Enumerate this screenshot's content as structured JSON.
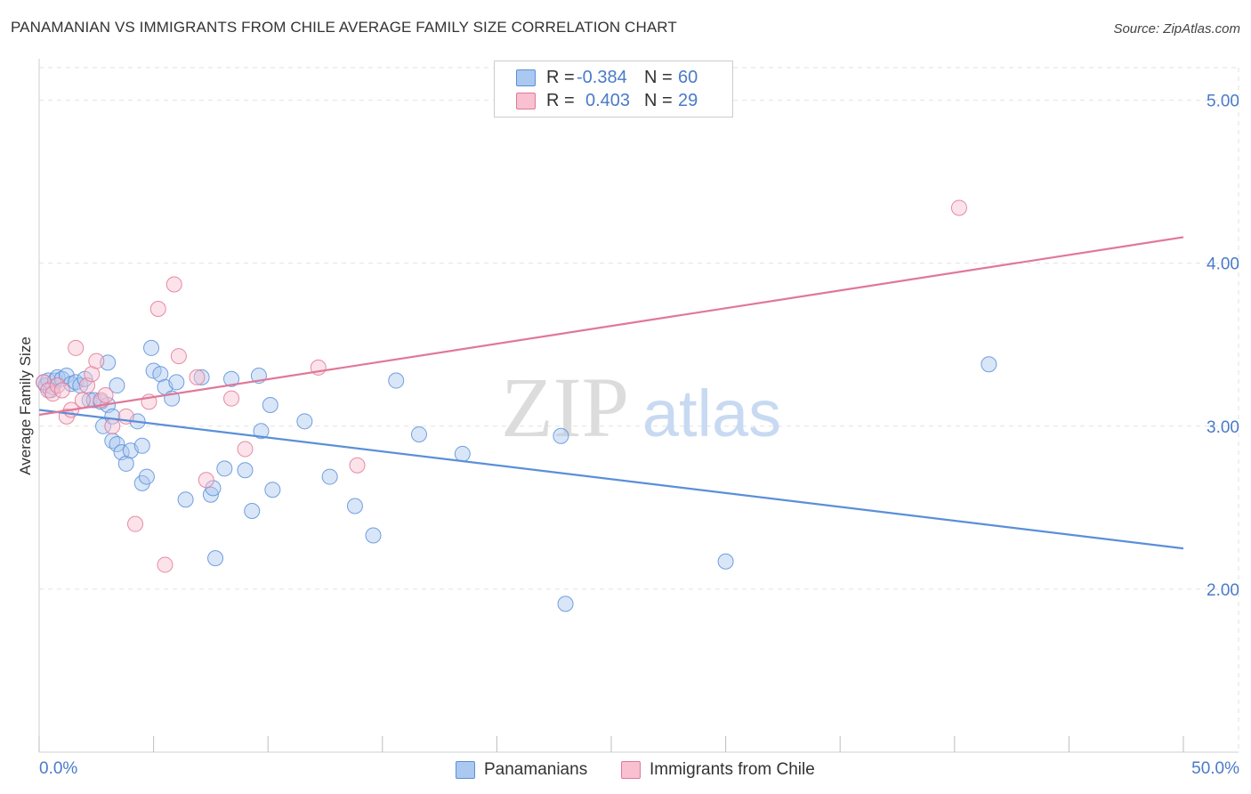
{
  "title": "PANAMANIAN VS IMMIGRANTS FROM CHILE AVERAGE FAMILY SIZE CORRELATION CHART",
  "source": "Source: ZipAtlas.com",
  "watermark": {
    "zip": "ZIP",
    "atlas": "atlas"
  },
  "legend": {
    "rows": [
      {
        "r_label": "R =",
        "r_value": "-0.384",
        "n_label": "N =",
        "n_value": "60",
        "color": "#aac8f0",
        "border": "#5b8fd8"
      },
      {
        "r_label": "R =",
        "r_value": "0.403",
        "n_label": "N =",
        "n_value": "29",
        "color": "#f8c0d0",
        "border": "#e07898"
      }
    ]
  },
  "bottom_legend": [
    {
      "label": "Panamanians",
      "color": "#aac8f0",
      "border": "#5b8fd8"
    },
    {
      "label": "Immigrants from Chile",
      "color": "#f8c0d0",
      "border": "#e07898"
    }
  ],
  "chart_data": {
    "type": "scatter",
    "xlabel": "",
    "ylabel": "Average Family Size",
    "xlim": [
      0,
      50
    ],
    "ylim": [
      1.0,
      5.2
    ],
    "x_tick_labels": [
      "0.0%",
      "50.0%"
    ],
    "y_ticks": [
      2.0,
      3.0,
      4.0,
      5.0
    ],
    "y_tick_labels": [
      "2.00",
      "3.00",
      "4.00",
      "5.00"
    ],
    "grid": true,
    "series": [
      {
        "name": "Panamanians",
        "color": "#5b8fd8",
        "fill": "#aac8f0",
        "points": [
          [
            0.2,
            3.27
          ],
          [
            0.3,
            3.25
          ],
          [
            0.4,
            3.28
          ],
          [
            0.5,
            3.22
          ],
          [
            0.6,
            3.24
          ],
          [
            0.7,
            3.28
          ],
          [
            0.8,
            3.3
          ],
          [
            1.0,
            3.29
          ],
          [
            1.2,
            3.31
          ],
          [
            1.4,
            3.26
          ],
          [
            1.6,
            3.27
          ],
          [
            1.8,
            3.25
          ],
          [
            2.0,
            3.29
          ],
          [
            2.2,
            3.16
          ],
          [
            2.4,
            3.16
          ],
          [
            2.7,
            3.15
          ],
          [
            2.8,
            3.0
          ],
          [
            3.0,
            3.39
          ],
          [
            3.0,
            3.13
          ],
          [
            3.2,
            3.06
          ],
          [
            3.2,
            2.91
          ],
          [
            3.4,
            2.89
          ],
          [
            3.4,
            3.25
          ],
          [
            3.6,
            2.84
          ],
          [
            3.8,
            2.77
          ],
          [
            4.0,
            2.85
          ],
          [
            4.3,
            3.03
          ],
          [
            4.5,
            2.88
          ],
          [
            4.5,
            2.65
          ],
          [
            4.7,
            2.69
          ],
          [
            4.9,
            3.48
          ],
          [
            5.0,
            3.34
          ],
          [
            5.3,
            3.32
          ],
          [
            5.5,
            3.24
          ],
          [
            5.8,
            3.17
          ],
          [
            6.0,
            3.27
          ],
          [
            6.4,
            2.55
          ],
          [
            7.1,
            3.3
          ],
          [
            7.5,
            2.58
          ],
          [
            7.6,
            2.62
          ],
          [
            7.7,
            2.19
          ],
          [
            8.1,
            2.74
          ],
          [
            8.4,
            3.29
          ],
          [
            9.0,
            2.73
          ],
          [
            9.3,
            2.48
          ],
          [
            9.6,
            3.31
          ],
          [
            9.7,
            2.97
          ],
          [
            10.1,
            3.13
          ],
          [
            10.2,
            2.61
          ],
          [
            11.6,
            3.03
          ],
          [
            12.7,
            2.69
          ],
          [
            13.8,
            2.51
          ],
          [
            14.6,
            2.33
          ],
          [
            15.6,
            3.28
          ],
          [
            16.6,
            2.95
          ],
          [
            18.5,
            2.83
          ],
          [
            22.8,
            2.94
          ],
          [
            23.0,
            1.91
          ],
          [
            30.0,
            2.17
          ],
          [
            41.5,
            3.38
          ]
        ]
      },
      {
        "name": "Immigrants from Chile",
        "color": "#e07898",
        "fill": "#f8c0d0",
        "points": [
          [
            0.2,
            3.27
          ],
          [
            0.4,
            3.22
          ],
          [
            0.6,
            3.2
          ],
          [
            0.8,
            3.25
          ],
          [
            1.0,
            3.22
          ],
          [
            1.2,
            3.06
          ],
          [
            1.4,
            3.1
          ],
          [
            1.6,
            3.48
          ],
          [
            1.9,
            3.16
          ],
          [
            2.1,
            3.25
          ],
          [
            2.3,
            3.32
          ],
          [
            2.5,
            3.4
          ],
          [
            2.7,
            3.16
          ],
          [
            2.9,
            3.19
          ],
          [
            3.2,
            3.0
          ],
          [
            3.8,
            3.06
          ],
          [
            4.2,
            2.4
          ],
          [
            4.8,
            3.15
          ],
          [
            5.2,
            3.72
          ],
          [
            5.5,
            2.15
          ],
          [
            5.9,
            3.87
          ],
          [
            6.1,
            3.43
          ],
          [
            6.9,
            3.3
          ],
          [
            7.3,
            2.67
          ],
          [
            8.4,
            3.17
          ],
          [
            9.0,
            2.86
          ],
          [
            12.2,
            3.36
          ],
          [
            13.9,
            2.76
          ],
          [
            40.2,
            4.34
          ]
        ]
      }
    ],
    "trend_lines": [
      {
        "series": "Panamanians",
        "x": [
          0,
          50
        ],
        "y": [
          3.1,
          2.25
        ]
      },
      {
        "series": "Immigrants from Chile",
        "x": [
          0,
          50
        ],
        "y": [
          3.07,
          4.16
        ]
      }
    ]
  }
}
